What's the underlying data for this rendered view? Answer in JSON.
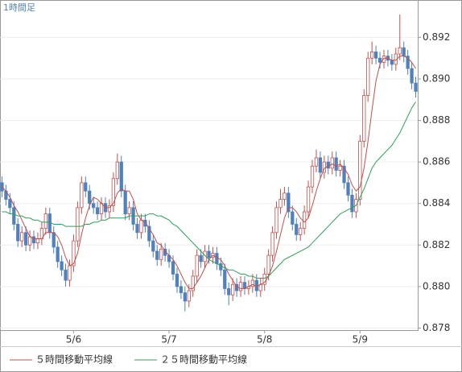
{
  "chart_data": {
    "type": "candlestick",
    "title": "1時間足",
    "categories": [
      null,
      null,
      null,
      null,
      null,
      null,
      null,
      null,
      null,
      null,
      null,
      null,
      null,
      null,
      null,
      null,
      null,
      null,
      "5/6",
      null,
      null,
      null,
      null,
      null,
      null,
      null,
      null,
      null,
      null,
      null,
      null,
      null,
      null,
      null,
      null,
      null,
      null,
      null,
      null,
      null,
      null,
      null,
      "5/7",
      null,
      null,
      null,
      null,
      null,
      null,
      null,
      null,
      null,
      null,
      null,
      null,
      null,
      null,
      null,
      null,
      null,
      null,
      null,
      null,
      null,
      null,
      null,
      "5/8",
      null,
      null,
      null,
      null,
      null,
      null,
      null,
      null,
      null,
      null,
      null,
      null,
      null,
      null,
      null,
      null,
      null,
      null,
      null,
      null,
      null,
      null,
      null,
      "5/9",
      null,
      null,
      null,
      null,
      null,
      null,
      null,
      null,
      null,
      null,
      null,
      null,
      null,
      null
    ],
    "open": [
      0.885,
      0.8846,
      0.8842,
      0.8838,
      0.883,
      0.8822,
      0.8826,
      0.882,
      0.8824,
      0.8821,
      0.8823,
      0.8828,
      0.8835,
      0.8826,
      0.8819,
      0.8812,
      0.8808,
      0.8803,
      0.881,
      0.8822,
      0.8838,
      0.885,
      0.8846,
      0.884,
      0.8838,
      0.8835,
      0.884,
      0.8836,
      0.8839,
      0.8852,
      0.886,
      0.8846,
      0.8835,
      0.8838,
      0.883,
      0.8826,
      0.8832,
      0.8829,
      0.8822,
      0.8817,
      0.8813,
      0.8818,
      0.8815,
      0.8812,
      0.8806,
      0.88,
      0.8797,
      0.8793,
      0.8798,
      0.8805,
      0.8815,
      0.8812,
      0.8817,
      0.8814,
      0.8816,
      0.8811,
      0.8808,
      0.8799,
      0.8796,
      0.8801,
      0.8798,
      0.8802,
      0.8799,
      0.88,
      0.8803,
      0.8798,
      0.8801,
      0.8806,
      0.8815,
      0.8826,
      0.8838,
      0.8842,
      0.8845,
      0.8836,
      0.883,
      0.8825,
      0.8828,
      0.8836,
      0.8848,
      0.8858,
      0.8862,
      0.8855,
      0.886,
      0.8857,
      0.8862,
      0.8856,
      0.8858,
      0.885,
      0.8844,
      0.8836,
      0.8842,
      0.887,
      0.8892,
      0.891,
      0.8913,
      0.891,
      0.8908,
      0.8911,
      0.8909,
      0.8907,
      0.8912,
      0.8915,
      0.8911,
      0.8905,
      0.8898
    ],
    "high": [
      0.8853,
      0.8849,
      0.8845,
      0.8841,
      0.8833,
      0.8829,
      0.8829,
      0.8827,
      0.8827,
      0.8826,
      0.8831,
      0.8838,
      0.8838,
      0.8829,
      0.8822,
      0.8815,
      0.8811,
      0.8813,
      0.8825,
      0.8841,
      0.8853,
      0.8853,
      0.8849,
      0.8843,
      0.8841,
      0.8843,
      0.8843,
      0.8842,
      0.8855,
      0.8864,
      0.8863,
      0.8849,
      0.8841,
      0.8841,
      0.8833,
      0.8835,
      0.8835,
      0.8832,
      0.8825,
      0.882,
      0.8821,
      0.8821,
      0.8818,
      0.8815,
      0.8809,
      0.8803,
      0.88,
      0.8801,
      0.8808,
      0.8818,
      0.8818,
      0.882,
      0.882,
      0.8819,
      0.8819,
      0.8814,
      0.8811,
      0.8802,
      0.8804,
      0.8804,
      0.8805,
      0.8805,
      0.8803,
      0.8806,
      0.8806,
      0.8804,
      0.8809,
      0.8818,
      0.8829,
      0.8841,
      0.8847,
      0.8848,
      0.8848,
      0.8839,
      0.8833,
      0.8831,
      0.8839,
      0.8851,
      0.8861,
      0.8866,
      0.8865,
      0.8863,
      0.8863,
      0.8865,
      0.8865,
      0.8861,
      0.8861,
      0.8853,
      0.8847,
      0.8845,
      0.8873,
      0.8895,
      0.8913,
      0.8918,
      0.8916,
      0.8913,
      0.8914,
      0.8914,
      0.8912,
      0.8915,
      0.8931,
      0.8918,
      0.8914,
      0.8908,
      0.8901
    ],
    "low": [
      0.8843,
      0.8839,
      0.8835,
      0.8827,
      0.8819,
      0.8819,
      0.8817,
      0.8817,
      0.8818,
      0.8818,
      0.882,
      0.8825,
      0.8823,
      0.8816,
      0.8809,
      0.8805,
      0.88,
      0.88,
      0.8807,
      0.8819,
      0.8835,
      0.8843,
      0.8837,
      0.8835,
      0.8832,
      0.8832,
      0.8833,
      0.8833,
      0.8836,
      0.8849,
      0.8843,
      0.8832,
      0.8832,
      0.8827,
      0.8823,
      0.8823,
      0.8826,
      0.8819,
      0.8814,
      0.881,
      0.881,
      0.8812,
      0.8809,
      0.8803,
      0.8797,
      0.8794,
      0.8788,
      0.879,
      0.8795,
      0.8802,
      0.8809,
      0.8809,
      0.8811,
      0.8811,
      0.8808,
      0.8805,
      0.8796,
      0.8791,
      0.8793,
      0.8795,
      0.8795,
      0.8796,
      0.8796,
      0.8797,
      0.8795,
      0.8795,
      0.8798,
      0.8803,
      0.8812,
      0.8823,
      0.8835,
      0.8839,
      0.8833,
      0.8827,
      0.8822,
      0.8822,
      0.8825,
      0.8833,
      0.8845,
      0.8855,
      0.8852,
      0.8852,
      0.8854,
      0.8854,
      0.8853,
      0.8853,
      0.8847,
      0.8841,
      0.8833,
      0.8833,
      0.8839,
      0.8867,
      0.8889,
      0.8907,
      0.8907,
      0.8905,
      0.8905,
      0.8906,
      0.8904,
      0.8904,
      0.8909,
      0.8908,
      0.8902,
      0.8895,
      0.8891
    ],
    "close": [
      0.8846,
      0.8842,
      0.8838,
      0.883,
      0.8822,
      0.8826,
      0.882,
      0.8824,
      0.8821,
      0.8823,
      0.8828,
      0.8835,
      0.8826,
      0.8819,
      0.8812,
      0.8808,
      0.8803,
      0.881,
      0.8822,
      0.8838,
      0.885,
      0.8846,
      0.884,
      0.8838,
      0.8835,
      0.884,
      0.8836,
      0.8839,
      0.8852,
      0.886,
      0.8846,
      0.8835,
      0.8838,
      0.883,
      0.8826,
      0.8832,
      0.8829,
      0.8822,
      0.8817,
      0.8813,
      0.8818,
      0.8815,
      0.8812,
      0.8806,
      0.88,
      0.8797,
      0.8793,
      0.8798,
      0.8805,
      0.8815,
      0.8812,
      0.8817,
      0.8814,
      0.8816,
      0.8811,
      0.8808,
      0.8799,
      0.8796,
      0.8801,
      0.8798,
      0.8802,
      0.8799,
      0.88,
      0.8803,
      0.8798,
      0.8801,
      0.8806,
      0.8815,
      0.8826,
      0.8838,
      0.8842,
      0.8845,
      0.8836,
      0.883,
      0.8825,
      0.8828,
      0.8836,
      0.8848,
      0.8858,
      0.8862,
      0.8855,
      0.886,
      0.8857,
      0.8862,
      0.8856,
      0.8858,
      0.885,
      0.8844,
      0.8836,
      0.8842,
      0.887,
      0.8892,
      0.891,
      0.8913,
      0.891,
      0.8908,
      0.8911,
      0.8909,
      0.8907,
      0.8912,
      0.8915,
      0.8911,
      0.8905,
      0.8898,
      0.8894
    ],
    "up_color": "#c0504d",
    "down_color": "#4f81bd",
    "series": [
      {
        "name": "５時間移動平均線",
        "color": "#c0504d",
        "values": [
          0.8848,
          0.8846,
          0.8843,
          0.8839,
          0.8836,
          0.8832,
          0.8828,
          0.8824,
          0.8823,
          0.8823,
          0.8823,
          0.8826,
          0.8826,
          0.8826,
          0.8824,
          0.882,
          0.8814,
          0.881,
          0.8811,
          0.8816,
          0.8825,
          0.8833,
          0.8839,
          0.8843,
          0.8842,
          0.884,
          0.8838,
          0.8838,
          0.884,
          0.8845,
          0.8847,
          0.8846,
          0.8846,
          0.8842,
          0.8835,
          0.8832,
          0.8831,
          0.8828,
          0.8825,
          0.8821,
          0.882,
          0.8817,
          0.8815,
          0.8813,
          0.881,
          0.8806,
          0.8802,
          0.8799,
          0.8799,
          0.8802,
          0.8805,
          0.8809,
          0.8813,
          0.8815,
          0.8814,
          0.8813,
          0.881,
          0.8806,
          0.8803,
          0.88,
          0.8799,
          0.8799,
          0.88,
          0.8801,
          0.88,
          0.8801,
          0.8802,
          0.8805,
          0.881,
          0.8817,
          0.8825,
          0.8833,
          0.8838,
          0.8838,
          0.8836,
          0.8833,
          0.8831,
          0.8833,
          0.8839,
          0.8846,
          0.8852,
          0.8857,
          0.8858,
          0.8859,
          0.8858,
          0.8859,
          0.8857,
          0.8854,
          0.8849,
          0.8846,
          0.8848,
          0.8857,
          0.887,
          0.8885,
          0.8899,
          0.8907,
          0.891,
          0.891,
          0.8909,
          0.8909,
          0.8911,
          0.8911,
          0.891,
          0.8908,
          0.8905
        ]
      },
      {
        "name": "２５時間移動平均線",
        "color": "#2ca05a",
        "values": [
          0.8836,
          0.8836,
          0.8835,
          0.8835,
          0.8834,
          0.8834,
          0.8833,
          0.8833,
          0.8832,
          0.8832,
          0.8831,
          0.8831,
          0.8831,
          0.883,
          0.883,
          0.883,
          0.8829,
          0.8829,
          0.8829,
          0.8829,
          0.8829,
          0.883,
          0.883,
          0.8831,
          0.8831,
          0.8832,
          0.8832,
          0.8833,
          0.8833,
          0.8833,
          0.8833,
          0.8833,
          0.8834,
          0.8834,
          0.8834,
          0.8834,
          0.8834,
          0.8835,
          0.8835,
          0.8834,
          0.8834,
          0.8833,
          0.8832,
          0.883,
          0.8829,
          0.8827,
          0.8825,
          0.8823,
          0.8821,
          0.8819,
          0.8817,
          0.8815,
          0.8813,
          0.8812,
          0.8811,
          0.881,
          0.8809,
          0.8808,
          0.8808,
          0.8807,
          0.8806,
          0.8806,
          0.8805,
          0.8805,
          0.8804,
          0.8804,
          0.8804,
          0.8805,
          0.8807,
          0.8809,
          0.8811,
          0.8813,
          0.8814,
          0.8815,
          0.8816,
          0.8817,
          0.8818,
          0.8819,
          0.8821,
          0.8823,
          0.8825,
          0.8827,
          0.8829,
          0.8831,
          0.8833,
          0.8835,
          0.8836,
          0.8837,
          0.8838,
          0.8839,
          0.8843,
          0.8847,
          0.8852,
          0.8857,
          0.886,
          0.8862,
          0.8864,
          0.8866,
          0.8868,
          0.8871,
          0.8874,
          0.8878,
          0.8882,
          0.8886,
          0.8889
        ]
      }
    ],
    "ylim": [
      0.8779,
      0.8938
    ],
    "yticks": [
      0.878,
      {
        "value": 0.88,
        "label": "0.880"
      },
      0.882,
      0.884,
      0.886,
      0.888,
      {
        "value": 0.89,
        "label": "0.890"
      },
      0.892
    ],
    "grid": true
  }
}
